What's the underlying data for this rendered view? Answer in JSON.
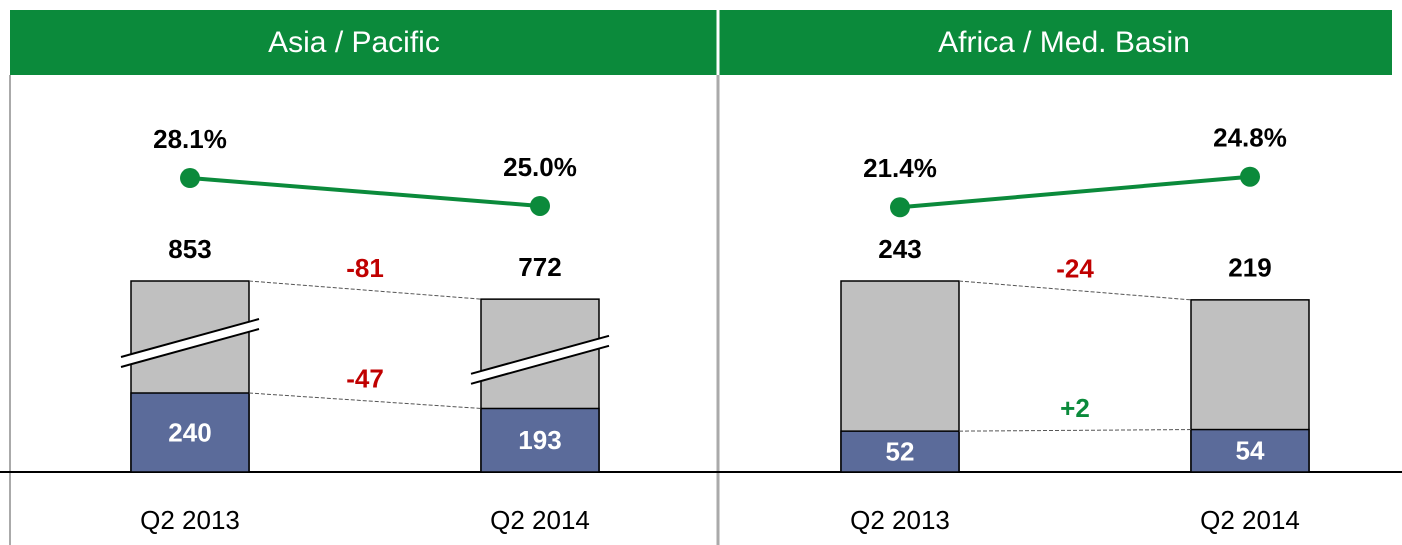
{
  "chart_data": [
    {
      "type": "bar",
      "title": "Asia / Pacific",
      "categories": [
        "Q2 2013",
        "Q2 2014"
      ],
      "totals": [
        853,
        772
      ],
      "segment": [
        240,
        193
      ],
      "share": [
        28.1,
        25.0
      ],
      "share_labels": [
        "28.1%",
        "25.0%"
      ],
      "changes": [
        -81,
        -47
      ],
      "total_color": "#c0c0c0",
      "segment_color": "#5b6b9a",
      "line_color": "#0b8a3b",
      "change_colors": [
        "#c00000",
        "#c00000"
      ],
      "axis_break": true
    },
    {
      "type": "bar",
      "title": "Africa / Med. Basin",
      "categories": [
        "Q2 2013",
        "Q2 2014"
      ],
      "totals": [
        243,
        219
      ],
      "segment": [
        52,
        54
      ],
      "share": [
        21.4,
        24.8
      ],
      "share_labels": [
        "21.4%",
        "24.8%"
      ],
      "changes": [
        -24,
        2
      ],
      "change_labels": [
        "-24",
        "+2"
      ],
      "total_color": "#c0c0c0",
      "segment_color": "#5b6b9a",
      "line_color": "#0b8a3b",
      "change_colors": [
        "#c00000",
        "#0b8a3b"
      ],
      "axis_break": false
    }
  ]
}
